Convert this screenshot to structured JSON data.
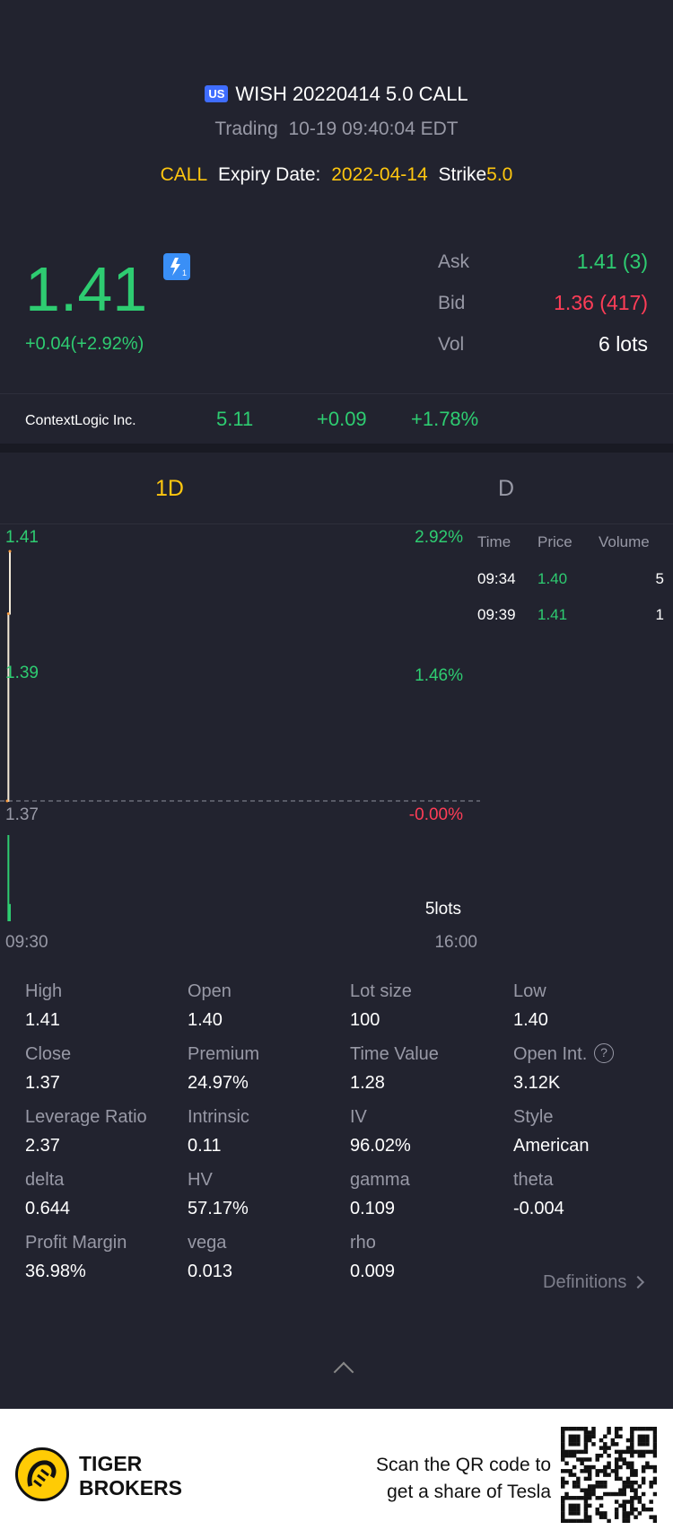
{
  "header": {
    "market_badge": "US",
    "title": "WISH 20220414 5.0 CALL",
    "status": "Trading",
    "timestamp": "10-19 09:40:04 EDT",
    "option_type": "CALL",
    "expiry_label": "Expiry Date:",
    "expiry_value": "2022-04-14",
    "strike_label": "Strike",
    "strike_value": "5.0"
  },
  "quote": {
    "price": "1.41",
    "change": "+0.04(+2.92%)",
    "level_badge": "1",
    "ask_label": "Ask",
    "ask_value": "1.41 (3)",
    "bid_label": "Bid",
    "bid_value": "1.36 (417)",
    "vol_label": "Vol",
    "vol_value": "6 lots"
  },
  "underlying": {
    "name": "ContextLogic Inc.",
    "price": "5.11",
    "change": "+0.09",
    "change_pct": "+1.78%"
  },
  "tabs": [
    {
      "label": "1D",
      "active": true
    },
    {
      "label": "D",
      "active": false
    }
  ],
  "chart_data": {
    "type": "line",
    "y_labels": [
      "1.41",
      "1.39",
      "1.37"
    ],
    "pct_labels": [
      "2.92%",
      "1.46%",
      "-0.00%"
    ],
    "x_labels": [
      "09:30",
      "16:00"
    ],
    "volume_label": "5lots",
    "ylim": [
      1.37,
      1.41
    ],
    "prev_close": 1.37,
    "price_series": [
      {
        "time": "09:30",
        "price": 1.37
      },
      {
        "time": "09:34",
        "price": 1.4
      },
      {
        "time": "09:39",
        "price": 1.41
      }
    ],
    "volume_series": [
      {
        "time": "09:34",
        "volume": 5
      },
      {
        "time": "09:39",
        "volume": 1
      }
    ],
    "colors": {
      "line": "#f4ead8",
      "up": "#2ecc71",
      "down": "#ff3d57"
    }
  },
  "trades": {
    "headers": [
      "Time",
      "Price",
      "Volume"
    ],
    "rows": [
      {
        "time": "09:34",
        "price": "1.40",
        "volume": "5"
      },
      {
        "time": "09:39",
        "price": "1.41",
        "volume": "1"
      }
    ]
  },
  "stats": [
    {
      "label": "High",
      "value": "1.41"
    },
    {
      "label": "Open",
      "value": "1.40"
    },
    {
      "label": "Lot size",
      "value": "100"
    },
    {
      "label": "Low",
      "value": "1.40"
    },
    {
      "label": "Close",
      "value": "1.37"
    },
    {
      "label": "Premium",
      "value": "24.97%"
    },
    {
      "label": "Time Value",
      "value": "1.28"
    },
    {
      "label": "Open Int.",
      "value": "3.12K"
    },
    {
      "label": "Leverage Ratio",
      "value": "2.37"
    },
    {
      "label": "Intrinsic",
      "value": "0.11"
    },
    {
      "label": "IV",
      "value": "96.02%"
    },
    {
      "label": "Style",
      "value": "American"
    },
    {
      "label": "delta",
      "value": "0.644"
    },
    {
      "label": "HV",
      "value": "57.17%"
    },
    {
      "label": "gamma",
      "value": "0.109"
    },
    {
      "label": "theta",
      "value": "-0.004"
    },
    {
      "label": "Profit Margin",
      "value": "36.98%"
    },
    {
      "label": "vega",
      "value": "0.013"
    },
    {
      "label": "rho",
      "value": "0.009"
    }
  ],
  "definitions_link": "Definitions",
  "footer": {
    "brand_line1": "TIGER",
    "brand_line2": "BROKERS",
    "qr_text_line1": "Scan the QR code to",
    "qr_text_line2": "get a share of Tesla"
  },
  "colors": {
    "background": "#22232f",
    "up": "#2ecc71",
    "down": "#ff3d57",
    "accent": "#ffc70f",
    "brand_yellow": "#ffcb05"
  }
}
